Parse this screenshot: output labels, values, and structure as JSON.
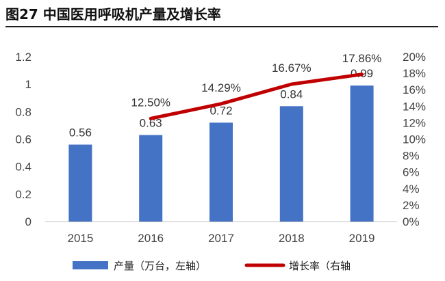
{
  "figure": {
    "title": "图27 中国医用呼吸机产量及增长率"
  },
  "chart_data": {
    "type": "bar",
    "categories": [
      "2015",
      "2016",
      "2017",
      "2018",
      "2019"
    ],
    "series": [
      {
        "name": "产量（万台，左轴）",
        "type": "bar",
        "axis": "left",
        "values": [
          0.56,
          0.63,
          0.72,
          0.84,
          0.99
        ],
        "labels": [
          "0.56",
          "0.63",
          "0.72",
          "0.84",
          "0.99"
        ],
        "color": "#4472C4"
      },
      {
        "name": "增长率（右轴）",
        "type": "line",
        "axis": "right",
        "values": [
          null,
          12.5,
          14.29,
          16.67,
          17.86
        ],
        "labels": [
          "",
          "12.50%",
          "14.29%",
          "16.67%",
          "17.86%"
        ],
        "color": "#C00000"
      }
    ],
    "y_left": {
      "ylim": [
        0,
        1.2
      ],
      "ticks": [
        "0",
        "0.2",
        "0.4",
        "0.6",
        "0.8",
        "1",
        "1.2"
      ]
    },
    "y_right": {
      "ylim": [
        0,
        20
      ],
      "ticks": [
        "0%",
        "2%",
        "4%",
        "6%",
        "8%",
        "10%",
        "12%",
        "14%",
        "16%",
        "18%",
        "20%"
      ]
    },
    "grid": false,
    "legend": "bottom",
    "legend_labels": [
      "产量（万台，左轴）",
      "增长率（右轴"
    ]
  }
}
